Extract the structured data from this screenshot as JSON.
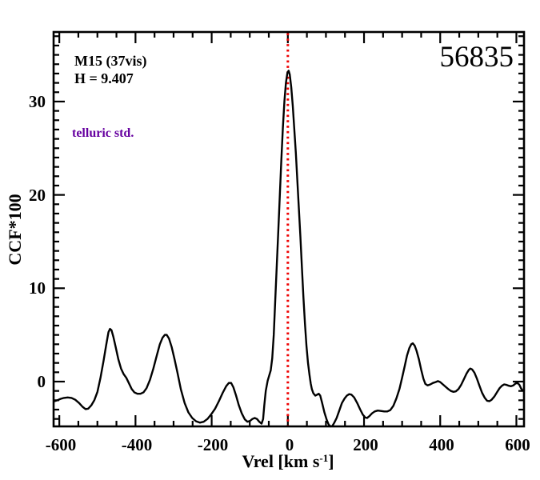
{
  "figure": {
    "background": "#ffffff",
    "annotations": {
      "target_line1": "M15 (37vis)",
      "target_line2": "H = 9.407",
      "note": "telluric std.",
      "note_color": "#6600a0",
      "frame_id": "56835"
    },
    "axes": {
      "ylabel": "CCF*100",
      "xlabel_main": "Vrel [km s",
      "xlabel_sup": "-1",
      "xlabel_close": "]",
      "x_tick_labels": [
        "-600",
        "-400",
        "-200",
        "0",
        "200",
        "400",
        "600"
      ],
      "y_tick_labels": [
        "0",
        "10",
        "20",
        "30"
      ]
    }
  },
  "chart_data": {
    "type": "line",
    "title": "56835",
    "xlabel": "Vrel [km s^-1]",
    "ylabel": "CCF*100",
    "xlim": [
      -615,
      620
    ],
    "ylim": [
      -4.8,
      37.45
    ],
    "grid": false,
    "x_major_ticks": [
      -600,
      -400,
      -200,
      0,
      200,
      400,
      600
    ],
    "x_minor_step": 50,
    "y_major_ticks": [
      0,
      10,
      20,
      30
    ],
    "y_minor_step": 1,
    "curve_color": "#000000",
    "reference_line": {
      "x": 0,
      "color": "#ee0000",
      "style": "dotted"
    },
    "series": [
      {
        "name": "CCF",
        "points": [
          [
            -613,
            -2.1
          ],
          [
            -605,
            -2.0
          ],
          [
            -597,
            -1.85
          ],
          [
            -588,
            -1.75
          ],
          [
            -578,
            -1.7
          ],
          [
            -568,
            -1.75
          ],
          [
            -558,
            -1.95
          ],
          [
            -548,
            -2.3
          ],
          [
            -539,
            -2.7
          ],
          [
            -531,
            -2.95
          ],
          [
            -524,
            -2.9
          ],
          [
            -516,
            -2.55
          ],
          [
            -508,
            -2.0
          ],
          [
            -500,
            -1.1
          ],
          [
            -492,
            0.4
          ],
          [
            -484,
            2.2
          ],
          [
            -477,
            3.9
          ],
          [
            -471,
            5.3
          ],
          [
            -467,
            5.65
          ],
          [
            -463,
            5.5
          ],
          [
            -458,
            4.8
          ],
          [
            -452,
            3.7
          ],
          [
            -445,
            2.4
          ],
          [
            -438,
            1.4
          ],
          [
            -431,
            0.8
          ],
          [
            -424,
            0.4
          ],
          [
            -417,
            -0.2
          ],
          [
            -410,
            -0.8
          ],
          [
            -403,
            -1.15
          ],
          [
            -395,
            -1.3
          ],
          [
            -387,
            -1.3
          ],
          [
            -379,
            -1.15
          ],
          [
            -371,
            -0.7
          ],
          [
            -362,
            0.2
          ],
          [
            -353,
            1.4
          ],
          [
            -344,
            2.8
          ],
          [
            -336,
            4.0
          ],
          [
            -329,
            4.7
          ],
          [
            -323,
            5.0
          ],
          [
            -318,
            5.0
          ],
          [
            -312,
            4.6
          ],
          [
            -305,
            3.7
          ],
          [
            -298,
            2.5
          ],
          [
            -290,
            1.0
          ],
          [
            -281,
            -0.8
          ],
          [
            -271,
            -2.3
          ],
          [
            -261,
            -3.3
          ],
          [
            -251,
            -3.9
          ],
          [
            -241,
            -4.25
          ],
          [
            -231,
            -4.4
          ],
          [
            -221,
            -4.3
          ],
          [
            -211,
            -4.0
          ],
          [
            -201,
            -3.5
          ],
          [
            -191,
            -2.9
          ],
          [
            -181,
            -2.1
          ],
          [
            -171,
            -1.2
          ],
          [
            -162,
            -0.5
          ],
          [
            -155,
            -0.15
          ],
          [
            -149,
            -0.15
          ],
          [
            -143,
            -0.6
          ],
          [
            -136,
            -1.5
          ],
          [
            -129,
            -2.5
          ],
          [
            -121,
            -3.4
          ],
          [
            -113,
            -4.05
          ],
          [
            -106,
            -4.3
          ],
          [
            -99,
            -4.2
          ],
          [
            -93,
            -4.0
          ],
          [
            -87,
            -3.9
          ],
          [
            -81,
            -4.0
          ],
          [
            -75,
            -4.3
          ],
          [
            -69,
            -4.5
          ],
          [
            -65,
            -4.0
          ],
          [
            -62,
            -2.6
          ],
          [
            -58,
            -1.0
          ],
          [
            -53,
            0.1
          ],
          [
            -48,
            0.8
          ],
          [
            -45,
            1.2
          ],
          [
            -41,
            2.5
          ],
          [
            -37,
            5.0
          ],
          [
            -33,
            8.8
          ],
          [
            -29,
            12.5
          ],
          [
            -25,
            16.2
          ],
          [
            -21,
            20.0
          ],
          [
            -17,
            23.8
          ],
          [
            -13,
            27.2
          ],
          [
            -9,
            30.0
          ],
          [
            -5,
            32.0
          ],
          [
            -1,
            33.1
          ],
          [
            2,
            33.3
          ],
          [
            5,
            32.9
          ],
          [
            9,
            31.5
          ],
          [
            13,
            29.5
          ],
          [
            17,
            27.0
          ],
          [
            21,
            24.5
          ],
          [
            25,
            21.5
          ],
          [
            29,
            18.5
          ],
          [
            33,
            15.5
          ],
          [
            37,
            12.2
          ],
          [
            41,
            9.0
          ],
          [
            45,
            6.2
          ],
          [
            49,
            3.8
          ],
          [
            53,
            2.0
          ],
          [
            57,
            0.7
          ],
          [
            60,
            -0.2
          ],
          [
            63,
            -0.8
          ],
          [
            67,
            -1.25
          ],
          [
            72,
            -1.5
          ],
          [
            77,
            -1.4
          ],
          [
            81,
            -1.3
          ],
          [
            85,
            -1.5
          ],
          [
            90,
            -2.3
          ],
          [
            96,
            -3.3
          ],
          [
            102,
            -4.1
          ],
          [
            107,
            -4.6
          ],
          [
            112,
            -4.8
          ],
          [
            117,
            -4.75
          ],
          [
            122,
            -4.4
          ],
          [
            128,
            -3.9
          ],
          [
            135,
            -3.1
          ],
          [
            142,
            -2.3
          ],
          [
            149,
            -1.8
          ],
          [
            155,
            -1.5
          ],
          [
            161,
            -1.35
          ],
          [
            167,
            -1.4
          ],
          [
            174,
            -1.7
          ],
          [
            182,
            -2.3
          ],
          [
            190,
            -3.0
          ],
          [
            197,
            -3.55
          ],
          [
            203,
            -3.85
          ],
          [
            208,
            -3.9
          ],
          [
            214,
            -3.7
          ],
          [
            221,
            -3.4
          ],
          [
            228,
            -3.2
          ],
          [
            236,
            -3.1
          ],
          [
            244,
            -3.15
          ],
          [
            253,
            -3.2
          ],
          [
            261,
            -3.2
          ],
          [
            269,
            -3.05
          ],
          [
            277,
            -2.6
          ],
          [
            285,
            -1.8
          ],
          [
            293,
            -0.8
          ],
          [
            300,
            0.4
          ],
          [
            307,
            1.7
          ],
          [
            313,
            2.8
          ],
          [
            319,
            3.6
          ],
          [
            324,
            4.0
          ],
          [
            328,
            4.1
          ],
          [
            333,
            3.85
          ],
          [
            338,
            3.3
          ],
          [
            344,
            2.4
          ],
          [
            350,
            1.3
          ],
          [
            356,
            0.3
          ],
          [
            361,
            -0.25
          ],
          [
            367,
            -0.4
          ],
          [
            374,
            -0.3
          ],
          [
            381,
            -0.15
          ],
          [
            388,
            -0.05
          ],
          [
            394,
            0.05
          ],
          [
            400,
            -0.05
          ],
          [
            407,
            -0.3
          ],
          [
            414,
            -0.55
          ],
          [
            421,
            -0.8
          ],
          [
            428,
            -1.0
          ],
          [
            435,
            -1.1
          ],
          [
            441,
            -1.05
          ],
          [
            448,
            -0.8
          ],
          [
            455,
            -0.35
          ],
          [
            462,
            0.25
          ],
          [
            469,
            0.85
          ],
          [
            475,
            1.25
          ],
          [
            479,
            1.4
          ],
          [
            484,
            1.3
          ],
          [
            490,
            0.95
          ],
          [
            496,
            0.35
          ],
          [
            503,
            -0.45
          ],
          [
            510,
            -1.2
          ],
          [
            517,
            -1.75
          ],
          [
            523,
            -2.05
          ],
          [
            529,
            -2.1
          ],
          [
            535,
            -1.95
          ],
          [
            542,
            -1.6
          ],
          [
            549,
            -1.15
          ],
          [
            556,
            -0.7
          ],
          [
            562,
            -0.45
          ],
          [
            568,
            -0.3
          ],
          [
            574,
            -0.35
          ],
          [
            580,
            -0.45
          ],
          [
            586,
            -0.5
          ],
          [
            592,
            -0.4
          ],
          [
            598,
            -0.2
          ],
          [
            603,
            -0.15
          ],
          [
            608,
            -0.35
          ],
          [
            612,
            -0.7
          ],
          [
            616,
            -0.95
          ],
          [
            620,
            -0.9
          ]
        ]
      }
    ]
  }
}
